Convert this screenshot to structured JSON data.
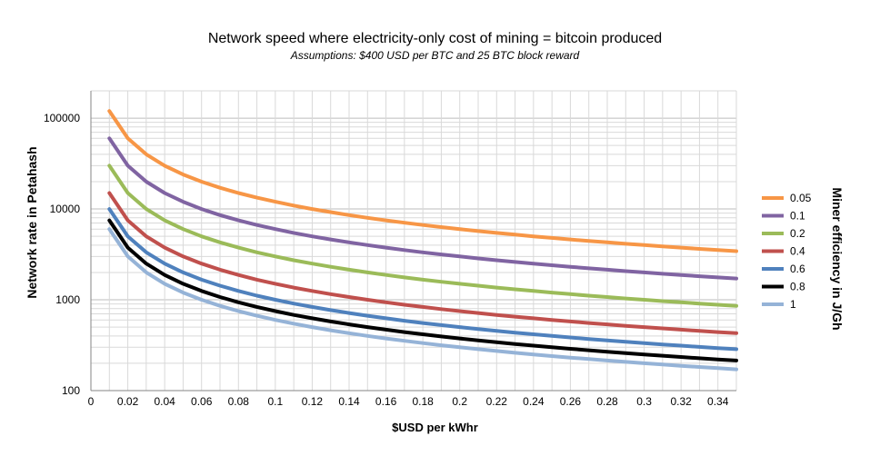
{
  "chart_data": {
    "type": "line",
    "title": "Network  speed  where  electricity-only  cost of mining  =  bitcoin  produced",
    "subtitle": "Assumptions:  $400 USD per BTC and 25 BTC block reward",
    "xlabel": "$USD per kWhr",
    "ylabel": "Network rate in Petahash",
    "legend_title": "Miner efficiency in J/Gh",
    "legend_position": "right",
    "grid": true,
    "y_scale": "log",
    "xlim": [
      0,
      0.35
    ],
    "ylim": [
      100,
      200000
    ],
    "x_ticks": [
      "0",
      "0.02",
      "0.04",
      "0.06",
      "0.08",
      "0.1",
      "0.12",
      "0.14",
      "0.16",
      "0.18",
      "0.2",
      "0.22",
      "0.24",
      "0.26",
      "0.28",
      "0.3",
      "0.32",
      "0.34"
    ],
    "y_ticks": [
      "100",
      "1000",
      "10000",
      "100000"
    ],
    "x": [
      0.01,
      0.02,
      0.03,
      0.04,
      0.05,
      0.06,
      0.07,
      0.08,
      0.09,
      0.1,
      0.11,
      0.12,
      0.13,
      0.14,
      0.15,
      0.16,
      0.17,
      0.18,
      0.19,
      0.2,
      0.21,
      0.22,
      0.23,
      0.24,
      0.25,
      0.26,
      0.27,
      0.28,
      0.29,
      0.3,
      0.31,
      0.32,
      0.33,
      0.34,
      0.35
    ],
    "series": [
      {
        "name": "0.05",
        "color": "#F79646",
        "k": 1200
      },
      {
        "name": "0.1",
        "color": "#8064A2",
        "k": 600
      },
      {
        "name": "0.2",
        "color": "#9BBB59",
        "k": 300
      },
      {
        "name": "0.4",
        "color": "#C0504D",
        "k": 150
      },
      {
        "name": "0.6",
        "color": "#4F81BD",
        "k": 100
      },
      {
        "name": "0.8",
        "color": "#000000",
        "k": 75
      },
      {
        "name": "1",
        "color": "#95B3D7",
        "k": 60
      }
    ]
  }
}
